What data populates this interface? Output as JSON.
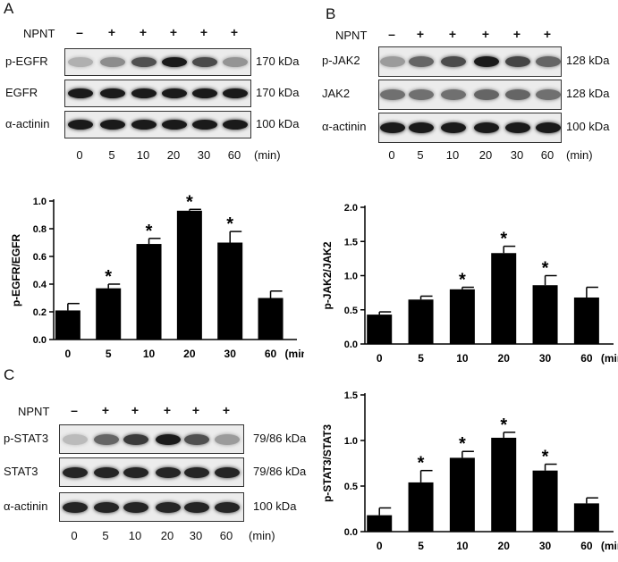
{
  "panels": {
    "A": {
      "letter": "A",
      "treatment_label": "NPNT",
      "signs": [
        "–",
        "+",
        "+",
        "+",
        "+",
        "+"
      ],
      "rows": [
        {
          "label": "p-EGFR",
          "kda": "170 kDa",
          "intensities": [
            0.25,
            0.42,
            0.7,
            0.95,
            0.72,
            0.38
          ]
        },
        {
          "label": "EGFR",
          "kda": "170 kDa",
          "intensities": [
            0.95,
            0.95,
            0.95,
            0.95,
            0.95,
            0.95
          ]
        },
        {
          "label": "α-actinin",
          "kda": "100  kDa",
          "intensities": [
            0.95,
            0.95,
            0.95,
            0.95,
            0.95,
            0.95
          ]
        }
      ],
      "times": [
        "0",
        "5",
        "10",
        "20",
        "30",
        "60"
      ],
      "time_unit": "(min)"
    },
    "B": {
      "letter": "B",
      "treatment_label": "NPNT",
      "signs": [
        "–",
        "+",
        "+",
        "+",
        "+",
        "+"
      ],
      "rows": [
        {
          "label": "p-JAK2",
          "kda": "128 kDa",
          "intensities": [
            0.35,
            0.6,
            0.72,
            0.95,
            0.75,
            0.6
          ]
        },
        {
          "label": "JAK2",
          "kda": "128 kDa",
          "intensities": [
            0.55,
            0.55,
            0.55,
            0.6,
            0.6,
            0.55
          ]
        },
        {
          "label": "α-actinin",
          "kda": "100 kDa",
          "intensities": [
            0.95,
            0.95,
            0.95,
            0.95,
            0.95,
            0.95
          ]
        }
      ],
      "times": [
        "0",
        "5",
        "10",
        "20",
        "30",
        "60"
      ],
      "time_unit": "(min)"
    },
    "C": {
      "letter": "C",
      "treatment_label": "NPNT",
      "signs": [
        "–",
        "+",
        "+",
        "+",
        "+",
        "+"
      ],
      "rows": [
        {
          "label": "p-STAT3",
          "kda": "79/86 kDa",
          "intensities": [
            0.2,
            0.6,
            0.8,
            0.95,
            0.7,
            0.35
          ]
        },
        {
          "label": "STAT3",
          "kda": "79/86 kDa",
          "intensities": [
            0.9,
            0.9,
            0.9,
            0.9,
            0.9,
            0.9
          ]
        },
        {
          "label": "α-actinin",
          "kda": "100 kDa",
          "intensities": [
            0.9,
            0.9,
            0.9,
            0.9,
            0.9,
            0.9
          ]
        }
      ],
      "times": [
        "0",
        "5",
        "10",
        "20",
        "30",
        "60"
      ],
      "time_unit": "(min)"
    }
  },
  "chart_data": [
    {
      "type": "bar",
      "ylabel": "p-EGFR/EGFR",
      "xlabel": "(min)",
      "categories": [
        "0",
        "5",
        "10",
        "20",
        "30",
        "60"
      ],
      "values": [
        0.21,
        0.37,
        0.69,
        0.93,
        0.7,
        0.3
      ],
      "errors": [
        0.05,
        0.03,
        0.04,
        0.01,
        0.08,
        0.05
      ],
      "significant": [
        false,
        true,
        true,
        true,
        true,
        false
      ],
      "star": "*",
      "ylim": [
        0,
        1.0
      ],
      "yticks": [
        "0.0",
        "0.2",
        "0.4",
        "0.6",
        "0.8",
        "1.0"
      ],
      "ytick_values": [
        0,
        0.2,
        0.4,
        0.6,
        0.8,
        1.0
      ]
    },
    {
      "type": "bar",
      "ylabel": "p-JAK2/JAK2",
      "xlabel": "(min)",
      "categories": [
        "0",
        "5",
        "10",
        "20",
        "30",
        "60"
      ],
      "values": [
        0.43,
        0.65,
        0.8,
        1.33,
        0.86,
        0.68
      ],
      "errors": [
        0.04,
        0.05,
        0.03,
        0.1,
        0.14,
        0.15
      ],
      "significant": [
        false,
        false,
        true,
        true,
        true,
        false
      ],
      "star": "*",
      "ylim": [
        0,
        2.0
      ],
      "yticks": [
        "0.0",
        "0.5",
        "1.0",
        "1.5",
        "2.0"
      ],
      "ytick_values": [
        0,
        0.5,
        1.0,
        1.5,
        2.0
      ]
    },
    {
      "type": "bar",
      "ylabel": "p-STAT3/STAT3",
      "xlabel": "(min)",
      "categories": [
        "0",
        "5",
        "10",
        "20",
        "30",
        "60"
      ],
      "values": [
        0.18,
        0.54,
        0.81,
        1.03,
        0.67,
        0.31
      ],
      "errors": [
        0.08,
        0.13,
        0.07,
        0.06,
        0.07,
        0.06
      ],
      "significant": [
        false,
        true,
        true,
        true,
        true,
        false
      ],
      "star": "*",
      "ylim": [
        0,
        1.5
      ],
      "yticks": [
        "0.0",
        "0.5",
        "1.0",
        "1.5"
      ],
      "ytick_values": [
        0,
        0.5,
        1.0,
        1.5
      ]
    }
  ]
}
